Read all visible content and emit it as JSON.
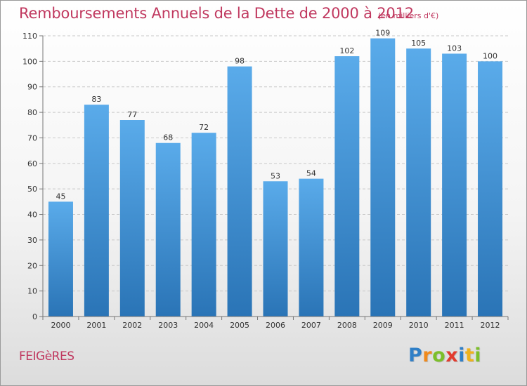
{
  "header": {
    "title": "Remboursements Annuels de la Dette de 2000 à 2012",
    "unit": "(en milliers d'€)"
  },
  "footer": {
    "commune": "FEIGèRES",
    "logo_letters": [
      "P",
      "r",
      "o",
      "x",
      "i",
      "t",
      "i"
    ],
    "logo_colors": [
      "#2f7fc7",
      "#f08a1c",
      "#7cbf2a",
      "#e23b2e",
      "#2f7fc7",
      "#f0b21c",
      "#7cbf2a"
    ]
  },
  "colors": {
    "bar_top": "#5aabea",
    "bar_bottom": "#2a74b6",
    "grid": "#c8c8c8",
    "axis": "#777777",
    "title": "#c0385f"
  },
  "chart_data": {
    "type": "bar",
    "categories": [
      "2000",
      "2001",
      "2002",
      "2003",
      "2004",
      "2005",
      "2006",
      "2007",
      "2008",
      "2009",
      "2010",
      "2011",
      "2012"
    ],
    "values": [
      45,
      83,
      77,
      68,
      72,
      98,
      53,
      54,
      102,
      109,
      105,
      103,
      100
    ],
    "data_labels": [
      "45",
      "83",
      "77",
      "68",
      "72",
      "98",
      "53",
      "54",
      "102",
      "109",
      "105",
      "103",
      "100"
    ],
    "title": "Remboursements Annuels de la Dette de 2000 à 2012",
    "ylabel": "(en milliers d'€)",
    "ylim": [
      0,
      110
    ],
    "yticks": [
      0,
      10,
      20,
      30,
      40,
      50,
      60,
      70,
      80,
      90,
      100,
      110
    ],
    "grid": true,
    "legend": "none"
  }
}
